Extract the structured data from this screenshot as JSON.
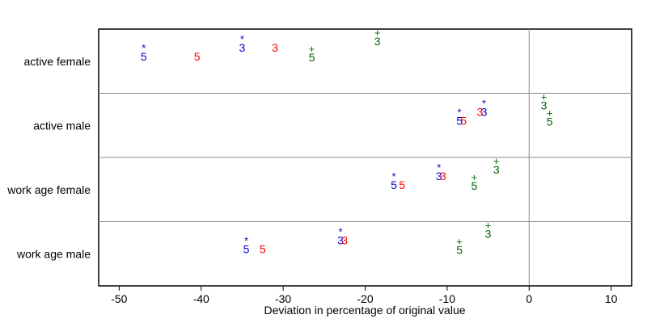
{
  "chart_data": {
    "type": "scatter",
    "title": "",
    "xlabel": "Deviation in percentage of original value",
    "ylabel": "",
    "xlim": [
      -52.5,
      12.5
    ],
    "xticks": [
      -50,
      -40,
      -30,
      -20,
      -10,
      0,
      10
    ],
    "reference_line_x": 0,
    "grid": false,
    "legend": "none",
    "categories": [
      "active female",
      "active male",
      "work age female",
      "work age male"
    ],
    "series": [
      {
        "label": "3",
        "marker": "*",
        "color": "#0000cc",
        "values": [
          -35,
          -5.5,
          -11,
          -23
        ]
      },
      {
        "label": "5",
        "marker": "*",
        "color": "#0000cc",
        "values": [
          -47,
          -8.5,
          -16.5,
          -34.5
        ]
      },
      {
        "label": "3",
        "marker": "",
        "color": "#ff0000",
        "values": [
          -31,
          -6,
          -10.5,
          -22.5
        ]
      },
      {
        "label": "5",
        "marker": "",
        "color": "#ff0000",
        "values": [
          -40.5,
          -8,
          -15.5,
          -32.5
        ]
      },
      {
        "label": "3",
        "marker": "+",
        "color": "#006600",
        "values": [
          -18.5,
          1.8,
          -4,
          -5
        ]
      },
      {
        "label": "5",
        "marker": "+",
        "color": "#006600",
        "values": [
          -26.5,
          2.5,
          -6.7,
          -8.5
        ]
      }
    ]
  }
}
